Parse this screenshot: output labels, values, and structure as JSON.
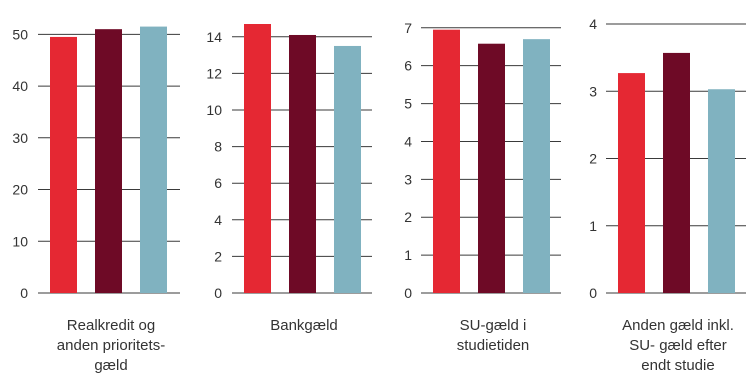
{
  "chart_data": [
    {
      "type": "bar",
      "category": "Realkredit og anden prioritets-gæld",
      "category_lines": [
        "Realkredit og",
        "anden prioritets-",
        "gæld"
      ],
      "values": [
        49.5,
        51.0,
        51.5
      ],
      "ylim": [
        0,
        52
      ],
      "yticks": [
        0,
        10,
        20,
        30,
        40,
        50
      ],
      "grid": true
    },
    {
      "type": "bar",
      "category": "Bankgæld",
      "category_lines": [
        "Bankgæld"
      ],
      "values": [
        14.7,
        14.1,
        13.5
      ],
      "ylim": [
        0,
        14.7
      ],
      "yticks": [
        0,
        2,
        4,
        6,
        8,
        10,
        12,
        14
      ],
      "grid": true
    },
    {
      "type": "bar",
      "category": "SU-gæld i studietiden",
      "category_lines": [
        "SU-gæld i",
        "studietiden"
      ],
      "values": [
        6.95,
        6.58,
        6.7
      ],
      "ylim": [
        0,
        7.1
      ],
      "yticks": [
        0,
        1,
        2,
        3,
        4,
        5,
        6,
        7
      ],
      "grid": true
    },
    {
      "type": "bar",
      "category": "Anden gæld inkl. SU- gæld efter endt studie",
      "category_lines": [
        "Anden gæld inkl.",
        "SU- gæld efter",
        "endt studie"
      ],
      "values": [
        3.27,
        3.57,
        3.03
      ],
      "ylim": [
        0,
        4
      ],
      "yticks": [
        0,
        1,
        2,
        3,
        4
      ],
      "grid": true
    }
  ],
  "colors": {
    "series": [
      "#e52833",
      "#6e0a26",
      "#80b2c0"
    ],
    "grid": "#3a3a3a",
    "text": "#333333"
  }
}
